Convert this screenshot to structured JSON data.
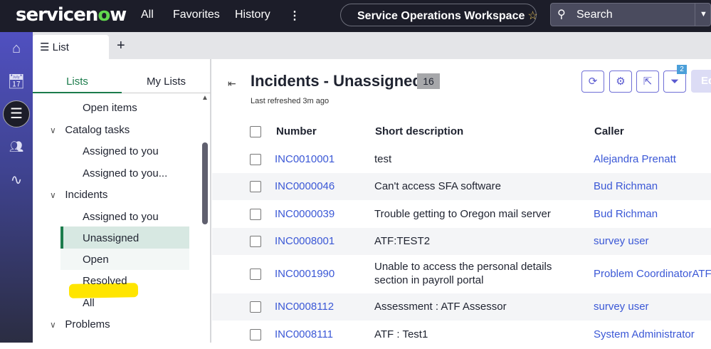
{
  "topbar": {
    "logo": "servicenow",
    "nav": [
      "All",
      "Favorites",
      "History"
    ],
    "more_icon": "vertical-ellipsis-icon",
    "workspace": "Service Operations Workspace",
    "search_placeholder": "Search"
  },
  "rail": {
    "items": [
      "home-icon",
      "calendar-clock-icon",
      "list-icon",
      "users-icon",
      "pulse-icon"
    ],
    "active": "list-icon"
  },
  "tabs": {
    "list_label": "List",
    "add_label": "+"
  },
  "left_panel": {
    "tabs": [
      "Lists",
      "My Lists"
    ],
    "active_tab": "Lists",
    "tree": [
      {
        "label": "Open items",
        "level": 2
      },
      {
        "label": "Catalog tasks",
        "level": 1
      },
      {
        "label": "Assigned to you",
        "level": 2
      },
      {
        "label": "Assigned to you...",
        "level": 2
      },
      {
        "label": "Incidents",
        "level": 1
      },
      {
        "label": "Assigned to you",
        "level": 2
      },
      {
        "label": "Unassigned",
        "level": 2,
        "selected": true
      },
      {
        "label": "Open",
        "level": 2
      },
      {
        "label": "Resolved",
        "level": 2
      },
      {
        "label": "All",
        "level": 2
      },
      {
        "label": "Problems",
        "level": 1
      }
    ]
  },
  "main": {
    "title": "Incidents - Unassigned",
    "count": "16",
    "last_refreshed": "Last refreshed 3m ago",
    "filter_badge": "2",
    "edit_label": "Ed",
    "columns": [
      "Number",
      "Short description",
      "Caller"
    ],
    "rows": [
      {
        "number": "INC0010001",
        "desc": "test",
        "caller": "Alejandra Prenatt"
      },
      {
        "number": "INC0000046",
        "desc": "Can't access SFA software",
        "caller": "Bud Richman"
      },
      {
        "number": "INC0000039",
        "desc": "Trouble getting to Oregon mail server",
        "caller": "Bud Richman"
      },
      {
        "number": "INC0008001",
        "desc": "ATF:TEST2",
        "caller": "survey user"
      },
      {
        "number": "INC0001990",
        "desc": "Unable to access the personal details",
        "desc2": "section in payroll portal",
        "caller": "Problem CoordinatorATF"
      },
      {
        "number": "INC0008112",
        "desc": "Assessment : ATF Assessor",
        "caller": "survey user"
      },
      {
        "number": "INC0008111",
        "desc": "ATF : Test1",
        "caller": "System Administrator"
      }
    ]
  },
  "colors": {
    "accent": "#1c7c4c",
    "link": "#3b58d6",
    "topbar": "#1c1d29",
    "highlight": "#ffe500"
  }
}
